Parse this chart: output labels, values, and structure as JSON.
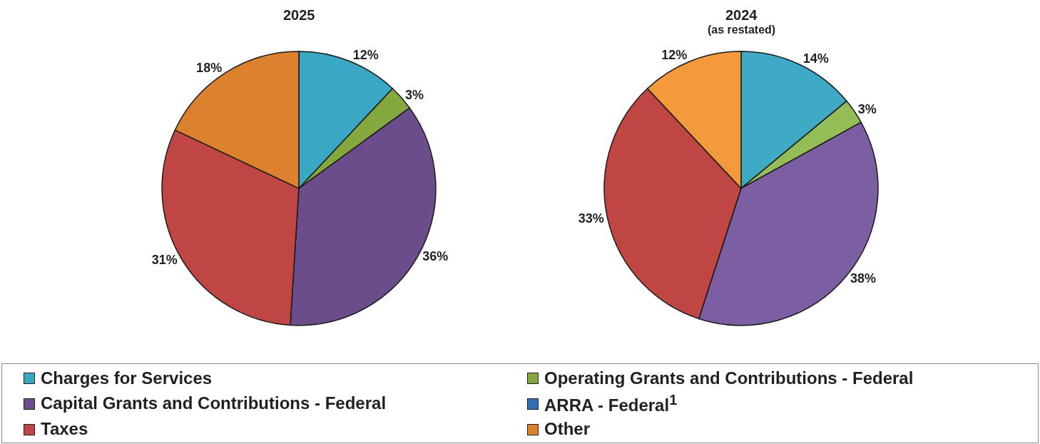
{
  "chart_data": [
    {
      "type": "pie",
      "title": "2025",
      "categories": [
        "Charges for Services",
        "Operating Grants and Contributions - Federal",
        "Capital Grants and Contributions - Federal",
        "ARRA - Federal$^{1}$",
        "Taxes",
        "Other"
      ],
      "values": [
        12,
        3,
        36,
        0,
        31,
        18
      ],
      "value_labels": [
        "12%",
        "3%",
        "36%",
        null,
        "31%",
        "18%"
      ],
      "colors": [
        "#3aa8c4",
        "#85a83e",
        "#6a4d8a",
        "#2e6fb3",
        "#c04643",
        "#dc822e"
      ],
      "legend": "bottom"
    },
    {
      "type": "pie",
      "title": "2024",
      "subtitle": "(as restated)",
      "categories": [
        null,
        null,
        null,
        null,
        null,
        null
      ],
      "values": [
        14,
        3,
        38,
        0,
        33,
        12
      ],
      "value_labels": [
        "14%",
        "3%",
        "38%",
        null,
        "33%",
        "12%"
      ],
      "colors": [
        "#3eaac6",
        "#94bd58",
        "#7c5ea3",
        "#2e6fb3",
        "#c04643",
        "#f39a3c"
      ]
    }
  ]
}
